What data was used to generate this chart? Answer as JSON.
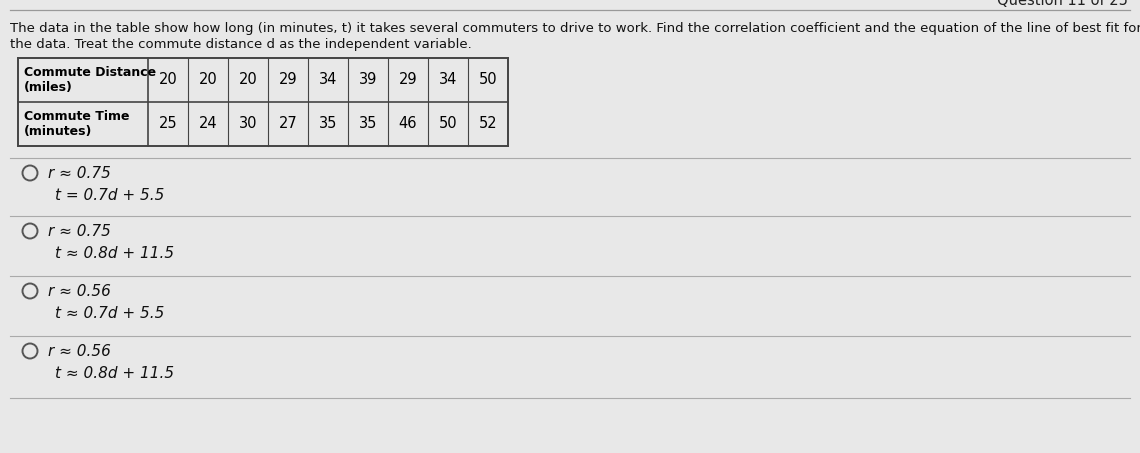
{
  "question_label": "Question 11 of 25",
  "description_line1": "The data in the table show how long (in minutes, t) it takes several commuters to drive to work. Find the correlation coefficient and the equation of the line of best fit for",
  "description_line2": "the data. Treat the commute distance d as the independent variable.",
  "table": {
    "row1_label": "Commute Distance\n(miles)",
    "row2_label": "Commute Time\n(minutes)",
    "row1_values": [
      "20",
      "20",
      "20",
      "29",
      "34",
      "39",
      "29",
      "34",
      "50"
    ],
    "row2_values": [
      "25",
      "24",
      "30",
      "27",
      "35",
      "35",
      "46",
      "50",
      "52"
    ]
  },
  "options": [
    {
      "r": "r ≈ 0.75",
      "t": "t = 0.7d + 5.5"
    },
    {
      "r": "r ≈ 0.75",
      "t": "t ≈ 0.8d + 11.5"
    },
    {
      "r": "r ≈ 0.56",
      "t": "t ≈ 0.7d + 5.5"
    },
    {
      "r": "r ≈ 0.56",
      "t": "t ≈ 0.8d + 11.5"
    }
  ],
  "bg_color": "#e8e8e8",
  "table_border": "#444444",
  "text_color": "#111111",
  "sep_color": "#aaaaaa",
  "question_color": "#222222",
  "desc_color": "#111111"
}
